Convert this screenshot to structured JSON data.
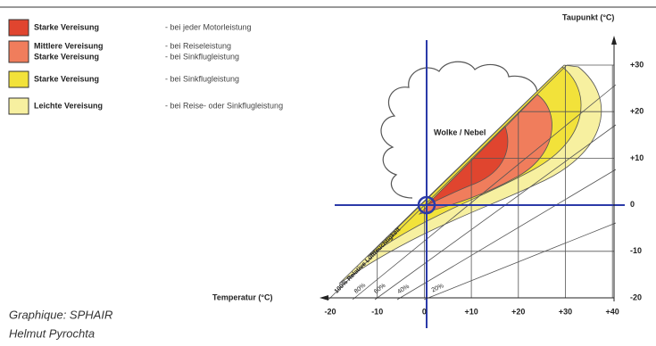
{
  "legend": [
    {
      "label": "Starke Vereisung",
      "description": "- bei jeder Motorleistung"
    },
    {
      "label": "Mittlere Vereisung",
      "label2": "Starke Vereisung",
      "description": "- bei Reiseleistung",
      "description2": "- bei Sinkflugleistung"
    },
    {
      "label": "Starke Vereisung",
      "description": "- bei Sinkflugleistung"
    },
    {
      "label": "Leichte Vereisung",
      "description": "- bei Reise- oder Sinkflugleistung"
    }
  ],
  "diagram": {
    "y_axis_title": "Taupunkt (°C)",
    "x_axis_title": "Temperatur (°C)",
    "x_ticks": [
      "-20",
      "-10",
      "0",
      "+10",
      "+20",
      "+30",
      "+40"
    ],
    "y_ticks": [
      "+30",
      "+20",
      "+10",
      "0",
      "-10",
      "-20"
    ],
    "cloud_label": "Wolke / Nebel",
    "humidity_labels": [
      "100% Relative Luftfeuchtigkeit",
      "80%",
      "60%",
      "40%",
      "20%"
    ]
  },
  "credits": [
    "Graphique: SPHAIR",
    "Helmut Pyrochta"
  ]
}
